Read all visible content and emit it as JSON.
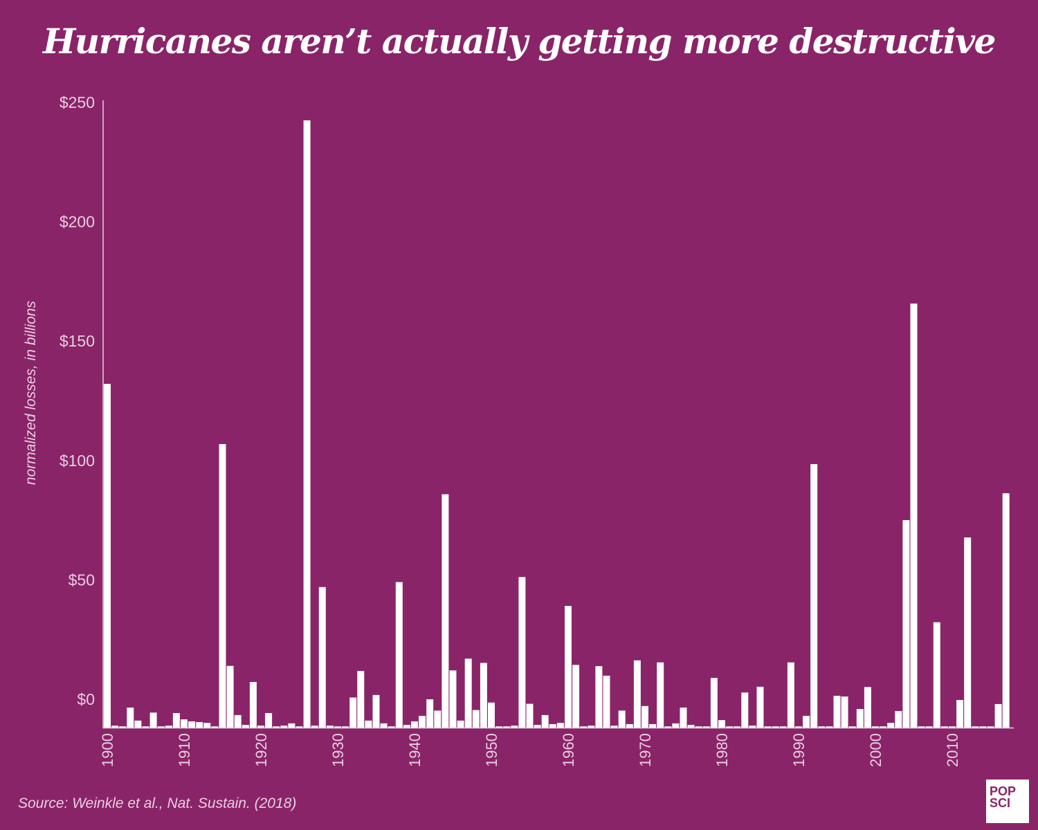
{
  "title": "Hurricanes aren’t actually getting more destructive",
  "source": "Source: Weinkle et al., Nat. Sustain. (2018)",
  "logo": {
    "line1": "POP",
    "line2": "SCI"
  },
  "colors": {
    "background": "#8a2468",
    "bars": "#ffffff",
    "text": "#e9cfe0"
  },
  "chart_data": {
    "type": "bar",
    "title": "Hurricanes aren’t actually getting more destructive",
    "ylabel": "normalized losses, in billions",
    "xlabel": "",
    "ylim": [
      0,
      250
    ],
    "yticks": [
      0,
      50,
      100,
      150,
      200,
      250
    ],
    "ytick_labels": [
      "$0",
      "$50",
      "$100",
      "$150",
      "$200",
      "$250"
    ],
    "xticks": [
      1900,
      1910,
      1920,
      1930,
      1940,
      1950,
      1960,
      1970,
      1980,
      1990,
      2000,
      2010
    ],
    "grid": false,
    "x_start": 1900,
    "x_end": 2017,
    "values": [
      137,
      0.8,
      0.5,
      8,
      2.8,
      0.5,
      6,
      0.5,
      0.8,
      5.8,
      3.3,
      2.5,
      2.2,
      1.9,
      0.5,
      113,
      24.6,
      5,
      1.1,
      18.2,
      0.8,
      5.8,
      0.5,
      0.8,
      1.7,
      0.5,
      242,
      0.8,
      56,
      0.8,
      0.5,
      0.5,
      12,
      22.6,
      2.8,
      13,
      1.7,
      0.5,
      58,
      1.1,
      2.5,
      4.7,
      11.3,
      6.8,
      93,
      22.8,
      2.8,
      27.5,
      7,
      25.8,
      10,
      0.5,
      0.5,
      0.8,
      60,
      9.5,
      1.1,
      5,
      1.4,
      1.9,
      48.5,
      25,
      0.5,
      0.8,
      24.5,
      20.7,
      0.8,
      6.8,
      1.4,
      26.8,
      8.6,
      1.4,
      26,
      0.5,
      1.7,
      8,
      1.1,
      0.5,
      0.5,
      19.8,
      3,
      0.5,
      0.5,
      14,
      0.8,
      16.3,
      0.5,
      0.5,
      0.5,
      26,
      0.5,
      4.7,
      105,
      0.5,
      0.5,
      12.7,
      12.4,
      0.5,
      7.4,
      16.2,
      0.5,
      0.5,
      1.9,
      6.6,
      82.7,
      169,
      0.5,
      0.5,
      42,
      0.5,
      0.5,
      11,
      75.8,
      0.5,
      0.5,
      0.5,
      9.4,
      93.4
    ]
  }
}
